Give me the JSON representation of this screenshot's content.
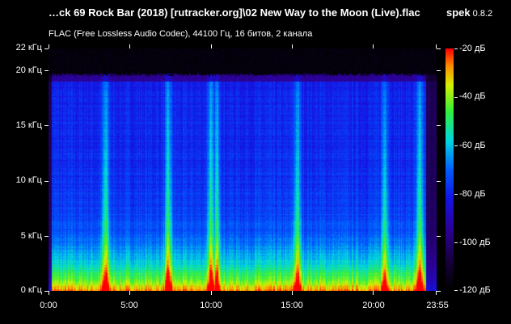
{
  "window": {
    "file_title": "…ck 69 Rock Bar (2018) [rutracker.org]\\02 New Way to the Moon (Live).flac",
    "app_name": "spek",
    "app_version": "0.8.2"
  },
  "file_info": "FLAC (Free Lossless Audio Codec), 44100 Гц, 16 битов, 2 канала",
  "frequency_axis": {
    "labels": [
      "22 кГц",
      "20 кГц",
      "15 кГц",
      "10 кГц",
      "5 кГц",
      "0 кГц"
    ],
    "values_khz": [
      22,
      20,
      15,
      10,
      5,
      0
    ],
    "max_khz": 22
  },
  "time_axis": {
    "labels": [
      "0:00",
      "5:00",
      "10:00",
      "15:00",
      "20:00",
      "23:55"
    ],
    "values_sec": [
      0,
      300,
      600,
      900,
      1200,
      1435
    ],
    "duration_sec": 1435
  },
  "db_scale": {
    "labels": [
      "-20 дБ",
      "-40 дБ",
      "-60 дБ",
      "-80 дБ",
      "-100 дБ",
      "-120 дБ"
    ],
    "values_db": [
      -20,
      -40,
      -60,
      -80,
      -100,
      -120
    ],
    "min_db": -120,
    "max_db": -20
  },
  "colors": {
    "background": "#000000",
    "text": "#ffffff",
    "palette": [
      "#000000",
      "#1a0040",
      "#2a0090",
      "#1010e0",
      "#0060ff",
      "#00d8e0",
      "#30f040",
      "#d8f000",
      "#ff9000",
      "#ff0000"
    ]
  },
  "spectrogram": {
    "cutoff_khz": 19.5,
    "bright_time_marks_sec": [
      210,
      442,
      598,
      622,
      918,
      1243,
      1372
    ]
  }
}
